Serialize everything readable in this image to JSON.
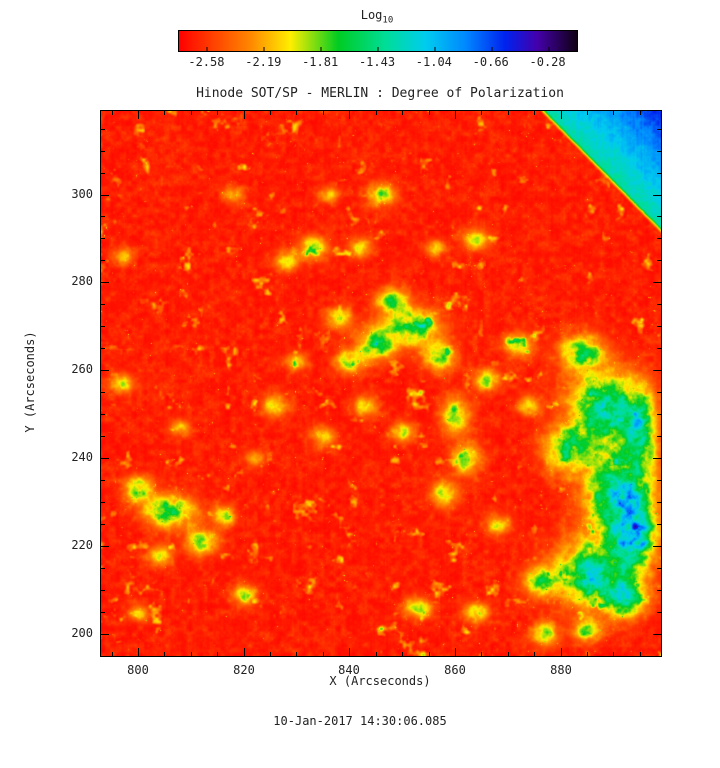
{
  "title": "Hinode SOT/SP - MERLIN : Degree of Polarization",
  "footer": "10-Jan-2017 14:30:06.085",
  "colorbar": {
    "label_main": "Log",
    "label_sub": "10",
    "ticks": [
      "-2.58",
      "-2.19",
      "-1.81",
      "-1.43",
      "-1.04",
      "-0.66",
      "-0.28"
    ],
    "stops": [
      [
        0.0,
        "#ff0000"
      ],
      [
        0.18,
        "#ff8800"
      ],
      [
        0.28,
        "#ffee00"
      ],
      [
        0.4,
        "#00cc22"
      ],
      [
        0.52,
        "#00dd99"
      ],
      [
        0.62,
        "#00ccee"
      ],
      [
        0.72,
        "#0088ff"
      ],
      [
        0.82,
        "#0022ee"
      ],
      [
        0.9,
        "#4400aa"
      ],
      [
        1.0,
        "#100014"
      ]
    ]
  },
  "axes": {
    "xlabel": "X (Arcseconds)",
    "ylabel": "Y (Arcseconds)",
    "x_ticks": [
      800,
      820,
      840,
      860,
      880
    ],
    "y_ticks": [
      200,
      220,
      240,
      260,
      280,
      300
    ],
    "x_minor_step": 5,
    "y_minor_step": 5,
    "x_range": [
      793,
      899
    ],
    "y_range": [
      195,
      319
    ]
  },
  "chart_data": {
    "type": "heatmap",
    "title": "Hinode SOT/SP - MERLIN : Degree of Polarization",
    "xlabel": "X (Arcseconds)",
    "ylabel": "Y (Arcseconds)",
    "x_range": [
      793,
      899
    ],
    "y_range": [
      195,
      319
    ],
    "value_label": "Log10 degree of polarization",
    "value_range": [
      -2.58,
      -0.28
    ],
    "colorbar_ticks": [
      -2.58,
      -2.19,
      -1.81,
      -1.43,
      -1.04,
      -0.66,
      -0.28
    ],
    "background_value": -2.45,
    "description": "Mostly red (low polarization ~ -2.5) granular solar field with scattered green/yellow magnetic patches; a strong green/cyan plage region near x=880-898 y=205-265; cyan-to-blue diagonal limb band across the top-right corner.",
    "noise_seed": 11,
    "limb_band": {
      "x_top": 876,
      "y_right": 291,
      "base": 0.52,
      "corner": 0.82
    },
    "features": [
      [
        888,
        251,
        6,
        8,
        0.52
      ],
      [
        891,
        232,
        6,
        9,
        0.58
      ],
      [
        886,
        214,
        7,
        7,
        0.5
      ],
      [
        894,
        222,
        4,
        7,
        0.48
      ],
      [
        881,
        242,
        4,
        5,
        0.38
      ],
      [
        895,
        247,
        3,
        9,
        0.42
      ],
      [
        876,
        212,
        3,
        3,
        0.33
      ],
      [
        884,
        264,
        4,
        4,
        0.4
      ],
      [
        892,
        208,
        4,
        4,
        0.42
      ],
      [
        852,
        270,
        5,
        4,
        0.42
      ],
      [
        845,
        266,
        3.5,
        3.5,
        0.38
      ],
      [
        857,
        263,
        3,
        3,
        0.36
      ],
      [
        848,
        276,
        2.8,
        2.8,
        0.34
      ],
      [
        840,
        262,
        2.6,
        2.6,
        0.3
      ],
      [
        860,
        250,
        2.6,
        4,
        0.34
      ],
      [
        862,
        240,
        2.6,
        3.4,
        0.32
      ],
      [
        858,
        232,
        2.4,
        3,
        0.3
      ],
      [
        866,
        258,
        2.4,
        2.4,
        0.3
      ],
      [
        838,
        272,
        2.4,
        2.4,
        0.3
      ],
      [
        833,
        288,
        2.6,
        2.6,
        0.32
      ],
      [
        846,
        300,
        2.6,
        2.6,
        0.3
      ],
      [
        828,
        285,
        2.2,
        2.2,
        0.28
      ],
      [
        864,
        290,
        2.4,
        2.4,
        0.28
      ],
      [
        842,
        288,
        2.2,
        2.2,
        0.26
      ],
      [
        806,
        228,
        4.5,
        3.5,
        0.42
      ],
      [
        800,
        233,
        2.8,
        2.8,
        0.34
      ],
      [
        812,
        221,
        2.8,
        2.8,
        0.34
      ],
      [
        816,
        227,
        2.2,
        2.2,
        0.3
      ],
      [
        804,
        218,
        2.2,
        2.2,
        0.3
      ],
      [
        797,
        257,
        2.2,
        2.2,
        0.27
      ],
      [
        820,
        209,
        2.2,
        2.2,
        0.3
      ],
      [
        826,
        252,
        2.6,
        2.6,
        0.25
      ],
      [
        835,
        245,
        2.2,
        2.2,
        0.25
      ],
      [
        853,
        206,
        2.6,
        2.2,
        0.3
      ],
      [
        864,
        205,
        2.2,
        2.2,
        0.28
      ],
      [
        872,
        266,
        2.6,
        2.6,
        0.3
      ],
      [
        877,
        200,
        2.6,
        2.6,
        0.3
      ],
      [
        885,
        201,
        2.6,
        2.6,
        0.32
      ],
      [
        868,
        225,
        2.2,
        2.2,
        0.26
      ],
      [
        850,
        246,
        2.2,
        2.2,
        0.27
      ],
      [
        843,
        252,
        2.2,
        2.2,
        0.26
      ],
      [
        822,
        240,
        1.8,
        1.8,
        0.22
      ],
      [
        808,
        247,
        1.8,
        1.8,
        0.22
      ],
      [
        797,
        286,
        1.8,
        1.8,
        0.22
      ],
      [
        818,
        300,
        1.8,
        1.8,
        0.22
      ],
      [
        874,
        252,
        2.2,
        2.2,
        0.26
      ],
      [
        800,
        205,
        1.8,
        1.8,
        0.22
      ],
      [
        836,
        300,
        1.8,
        1.8,
        0.22
      ],
      [
        830,
        262,
        2,
        2,
        0.24
      ],
      [
        856,
        288,
        1.8,
        1.8,
        0.24
      ]
    ]
  }
}
